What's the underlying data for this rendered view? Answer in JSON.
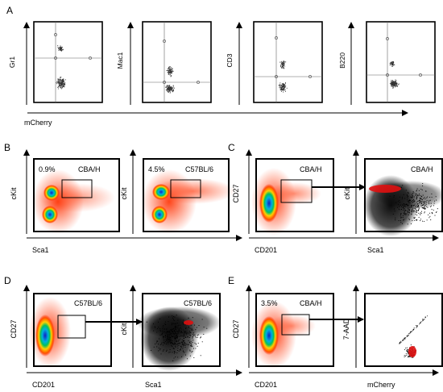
{
  "figure": {
    "panel_letters": [
      "A",
      "B",
      "C",
      "D",
      "E"
    ]
  },
  "panel_A": {
    "x_axis_label": "mCherry",
    "y_labels": [
      "Gr1",
      "Mac1",
      "CD3",
      "B220"
    ]
  },
  "panel_B": {
    "x_label": "Sca1",
    "y_label": "cKit",
    "plots": [
      {
        "strain": "CBA/H",
        "percent": "0.9%"
      },
      {
        "strain": "C57BL/6",
        "percent": "4.5%"
      }
    ]
  },
  "panel_C": {
    "left": {
      "x_label": "CD201",
      "y_label": "CD27",
      "strain": "CBA/H"
    },
    "right": {
      "x_label": "Sca1",
      "y_label": "cKit",
      "strain": "CBA/H"
    }
  },
  "panel_D": {
    "left": {
      "x_label": "CD201",
      "y_label": "CD27",
      "strain": "C57BL/6"
    },
    "right": {
      "x_label": "Sca1",
      "y_label": "cKit",
      "strain": "C57BL/6"
    }
  },
  "panel_E": {
    "left": {
      "x_label": "CD201",
      "y_label": "CD27",
      "strain": "CBA/H",
      "percent": "3.5%"
    },
    "right": {
      "x_label": "mCherry",
      "y_label": "7-AAD"
    }
  },
  "colors": {
    "density_outer": "#ff2a00",
    "density_mid": "#ffd000",
    "density_inner": "#00c060",
    "density_core": "#1020c0",
    "black_events": "#000000",
    "red_overlay": "#e01010"
  }
}
